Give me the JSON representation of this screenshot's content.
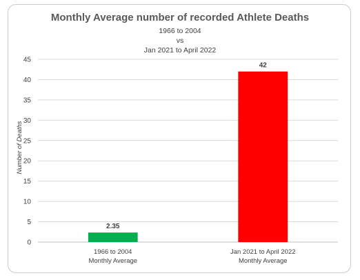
{
  "chart_data": {
    "type": "bar",
    "title": "Monthly Average number of recorded Athlete Deaths",
    "subtitle_lines": [
      "1966 to 2004",
      "vs",
      "Jan 2021 to April 2022"
    ],
    "categories": [
      [
        "1966 to 2004",
        "Monthly Average"
      ],
      [
        "Jan 2021 to April 2022",
        "Monthly Average"
      ]
    ],
    "values": [
      2.35,
      42
    ],
    "data_labels": [
      "2.35",
      "42"
    ],
    "bar_colors": [
      "#00b050",
      "#ff0000"
    ],
    "ylabel": "Number of Deaths",
    "xlabel": "",
    "ylim": [
      0,
      45
    ],
    "yticks": [
      0,
      5,
      10,
      15,
      20,
      25,
      30,
      35,
      40,
      45
    ],
    "grid": true,
    "legend": "none"
  }
}
